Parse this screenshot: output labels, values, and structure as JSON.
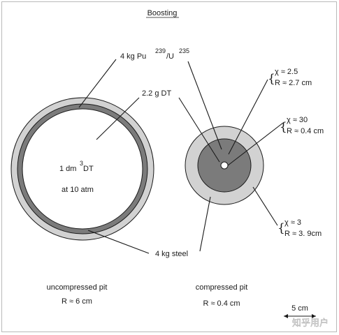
{
  "title": "Boosting",
  "labels": {
    "pu_u_prefix": "4 kg  Pu",
    "pu_mass_number": "239",
    "pu_u_slash": "/U",
    "u_mass_number": "235",
    "dt_gas": "2.2 g DT",
    "dt_volume_prefix": "1 dm",
    "dt_volume_exp": "3",
    "dt_volume_suffix": " DT",
    "dt_pressure": "at 10 atm",
    "steel": "4 kg steel",
    "uncompressed_caption": "uncompressed pit",
    "uncompressed_radius": "R ≈ 6 cm",
    "compressed_caption": "compressed pit",
    "compressed_radius": "R ≈ 0.4 cm",
    "scale_bar": "5 cm"
  },
  "compression_annotations": [
    {
      "chi": "χ ≈ 2.5",
      "radius": "R ≈ 2.7 cm"
    },
    {
      "chi": "χ ≈ 30",
      "radius": "R ≈ 0.4 cm"
    },
    {
      "chi": "χ ≈ 3",
      "radius": "R ≈ 3. 9cm"
    }
  ],
  "watermark": "知乎用户",
  "colors": {
    "outer_steel_shell": "#d2d2d2",
    "pu_shell": "#7b7b7b",
    "compressed_pu": "#7b7b7b",
    "line": "#1a1a1a",
    "background": "#ffffff"
  }
}
